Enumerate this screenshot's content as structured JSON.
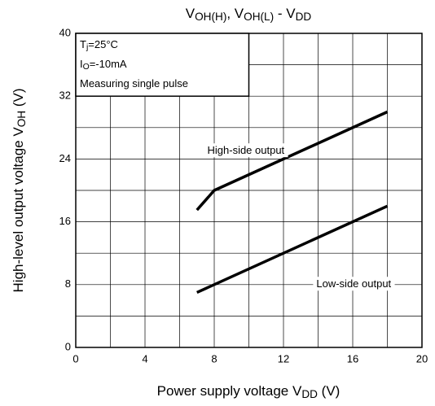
{
  "chart_data": {
    "type": "line",
    "title": [
      "V",
      "OH(H)",
      ", V",
      "OH(L)",
      " - V",
      "DD"
    ],
    "x_label": [
      "Power supply voltage   V",
      "DD",
      "   (V)"
    ],
    "y_label": [
      "High-level output voltage V",
      "OH",
      "   (V)"
    ],
    "conditions": [
      [
        "T",
        "j",
        "=25°C"
      ],
      [
        "I",
        "O",
        "=-10mA"
      ],
      [
        "Measuring single pulse"
      ]
    ],
    "series": [
      {
        "name": "High-side output",
        "color": "#000000",
        "x": [
          7,
          8,
          18
        ],
        "values": [
          17.5,
          20,
          30
        ]
      },
      {
        "name": "Low-side output",
        "color": "#000000",
        "x": [
          7,
          18
        ],
        "values": [
          7,
          18
        ]
      }
    ],
    "xlim": [
      0,
      20
    ],
    "ylim": [
      0,
      40
    ],
    "xticks": [
      0,
      4,
      8,
      12,
      16,
      20
    ],
    "yticks": [
      0,
      8,
      16,
      24,
      32,
      40
    ],
    "xgrid_minor": [
      2,
      6,
      10,
      14,
      18
    ],
    "ygrid_minor": [
      4,
      12,
      20,
      28,
      36
    ],
    "grid": true
  }
}
